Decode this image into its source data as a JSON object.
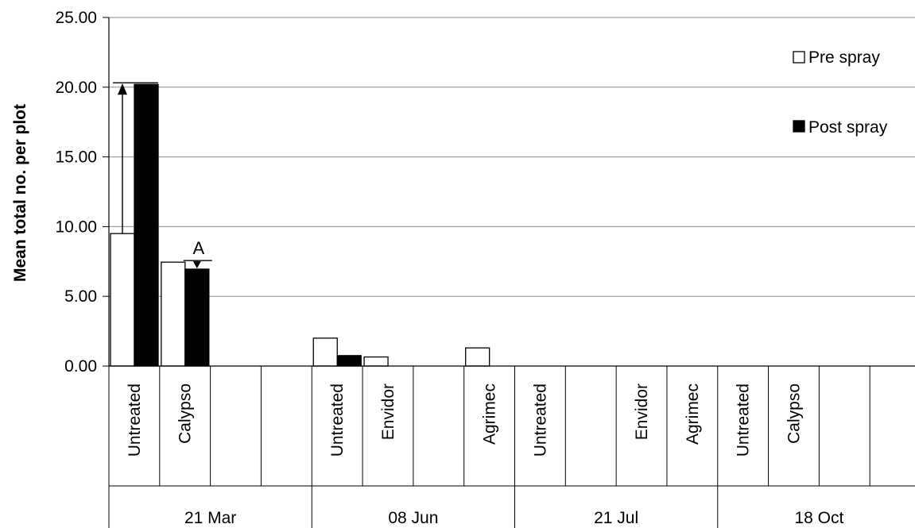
{
  "chart_data": {
    "type": "bar",
    "title": "",
    "ylabel": "Mean  total no. per plot",
    "ylim": [
      0,
      25
    ],
    "yticks": [
      0,
      5,
      10,
      15,
      20,
      25
    ],
    "ytick_format": "0.00",
    "grid": true,
    "legend_position": "top-right",
    "groups": [
      {
        "label": "21 Mar",
        "categories": [
          "Untreated",
          "Calypso",
          "",
          ""
        ]
      },
      {
        "label": "08 Jun",
        "categories": [
          "Untreated",
          "Envidor",
          "",
          "Agrimec"
        ]
      },
      {
        "label": "21 Jul",
        "categories": [
          "Untreated",
          "",
          "Envidor",
          "Agrimec"
        ]
      },
      {
        "label": "18 Oct",
        "categories": [
          "Untreated",
          "Calypso",
          "",
          ""
        ]
      }
    ],
    "series": [
      {
        "name": "Pre spray",
        "color": "#ffffff",
        "values": [
          9.5,
          7.45,
          0,
          0,
          2.0,
          0.65,
          0,
          1.3,
          0,
          0,
          0,
          0,
          0,
          0,
          0,
          0
        ]
      },
      {
        "name": "Post spray",
        "color": "#000000",
        "values": [
          20.2,
          6.95,
          0,
          0,
          0.75,
          0,
          0,
          0,
          0,
          0,
          0,
          0,
          0,
          0,
          0,
          0
        ]
      }
    ],
    "annotations": [
      {
        "label": "",
        "category_index": 0,
        "from": 9.5,
        "to": 20.2
      },
      {
        "label": "A",
        "category_index": 1,
        "from": 7.45,
        "to": 6.95
      }
    ]
  }
}
